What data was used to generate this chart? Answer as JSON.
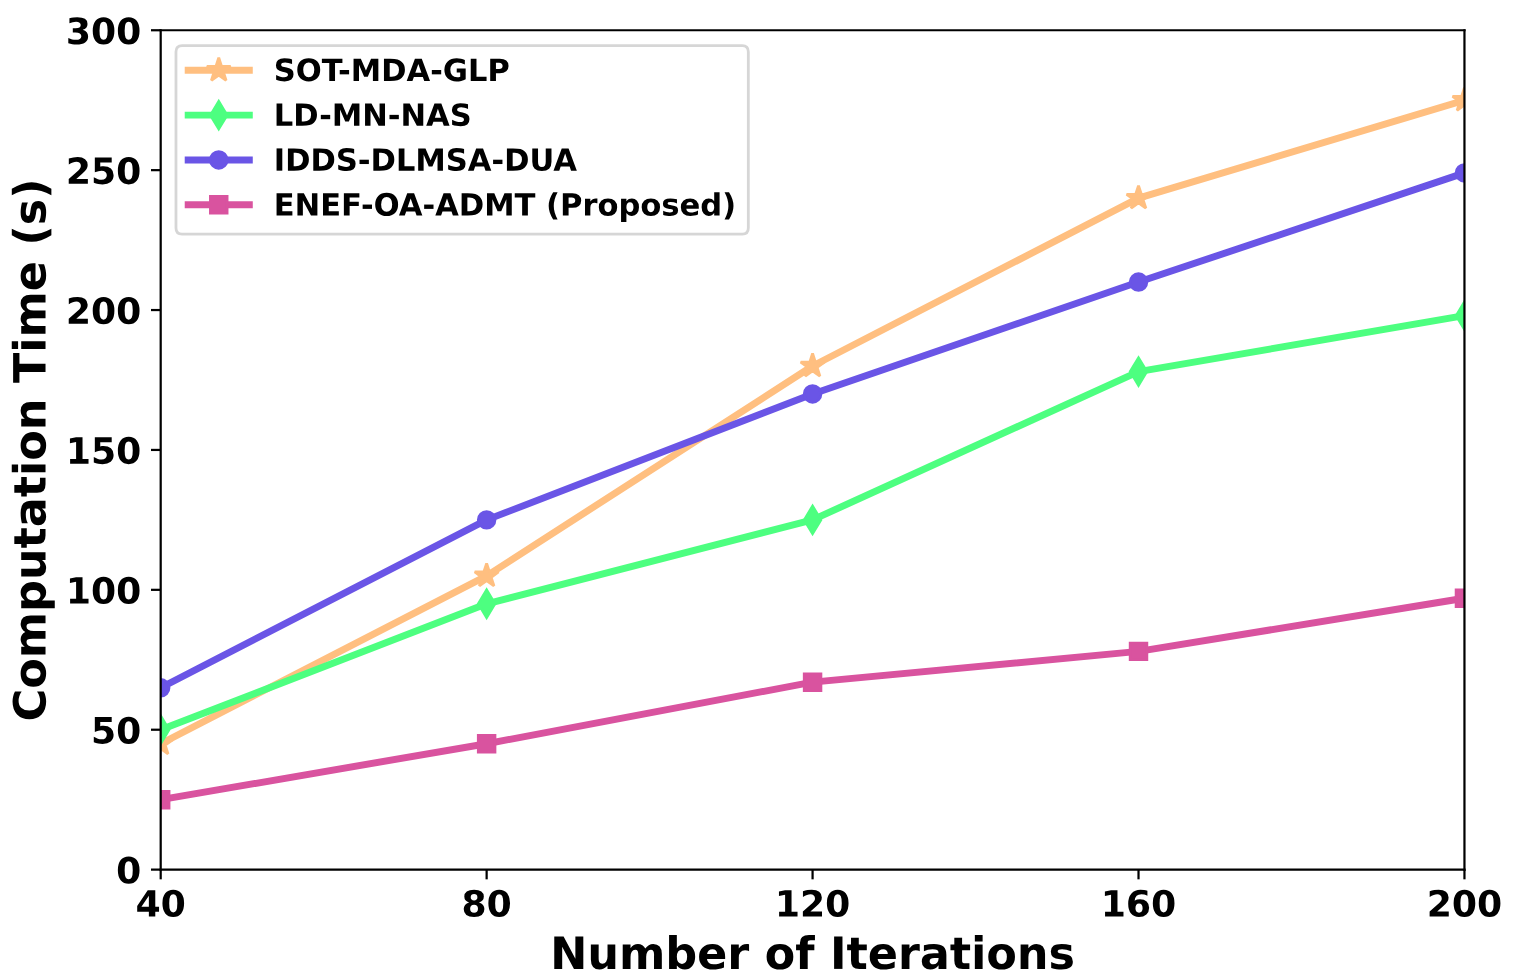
{
  "chart_data": {
    "type": "line",
    "xlabel": "Number of Iterations",
    "ylabel": "Computation Time (s)",
    "x": [
      40,
      80,
      120,
      160,
      200
    ],
    "series": [
      {
        "name": "SOT-MDA-GLP",
        "color": "#ffbf80",
        "marker": "star",
        "values": [
          45,
          105,
          180,
          240,
          275
        ]
      },
      {
        "name": "LD-MN-NAS",
        "color": "#4dff80",
        "marker": "diamond",
        "values": [
          50,
          95,
          125,
          178,
          198
        ]
      },
      {
        "name": "IDDS-DLMSA-DUA",
        "color": "#6a55e6",
        "marker": "circle",
        "values": [
          65,
          125,
          170,
          210,
          249
        ]
      },
      {
        "name": "ENEF-OA-ADMT (Proposed)",
        "color": "#d9539f",
        "marker": "square",
        "values": [
          25,
          45,
          67,
          78,
          97
        ]
      }
    ],
    "xlim": [
      40,
      200
    ],
    "xticks": [
      40,
      80,
      120,
      160,
      200
    ],
    "ylim": [
      0,
      300
    ],
    "yticks": [
      0,
      50,
      100,
      150,
      200,
      250,
      300
    ],
    "grid": false,
    "legend": "top left",
    "line_style": "solid"
  }
}
